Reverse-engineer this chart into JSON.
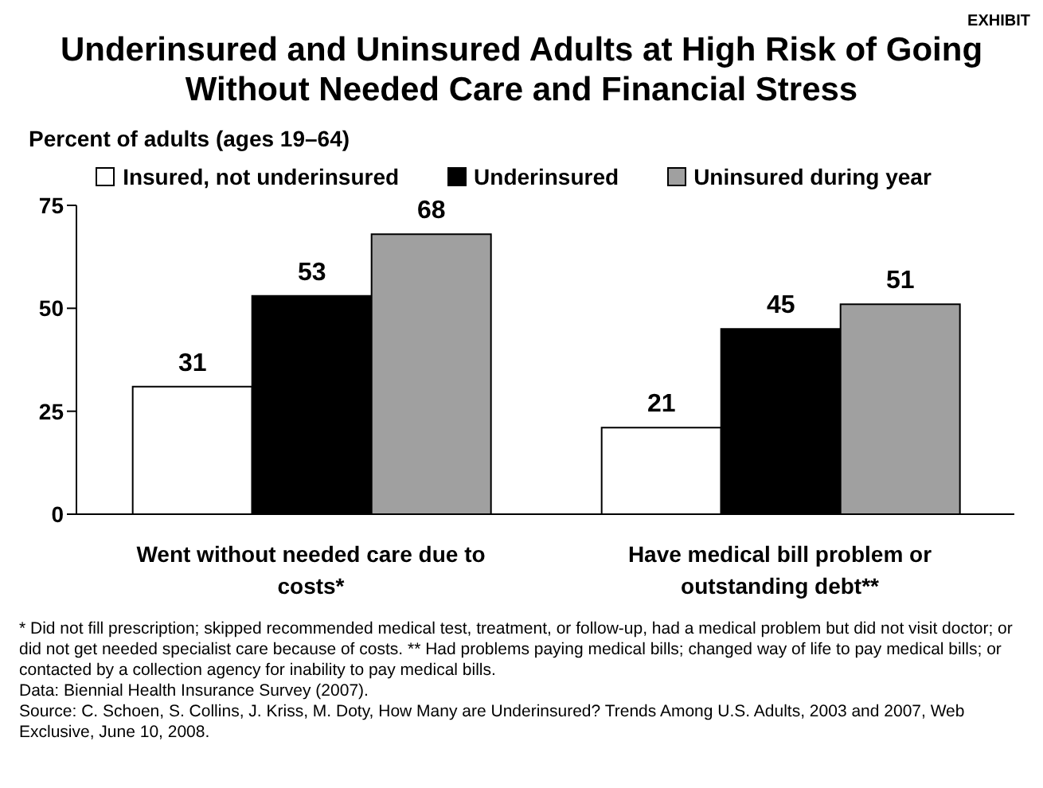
{
  "chart_data": {
    "type": "bar",
    "title": "Underinsured and Uninsured Adults at High Risk of Going Without Needed Care and Financial Stress",
    "subtitle": "Percent of adults (ages 19–64)",
    "categories": [
      "Went without needed care due to costs*",
      "Have medical bill problem or outstanding debt**"
    ],
    "series": [
      {
        "name": "Insured, not underinsured",
        "color": "#ffffff",
        "values": [
          31,
          21
        ]
      },
      {
        "name": "Underinsured",
        "color": "#000000",
        "values": [
          53,
          45
        ]
      },
      {
        "name": "Uninsured during year",
        "color": "#a0a0a0",
        "values": [
          68,
          51
        ]
      }
    ],
    "ylim": [
      0,
      75
    ],
    "yticks": [
      0,
      25,
      50,
      75
    ],
    "legend": "top",
    "data_labels": true,
    "annotations": [
      "EXHIBIT",
      "* Did not fill prescription; skipped recommended medical test, treatment, or follow-up, had a medical problem but did not visit doctor; or did not get needed specialist care because of costs. ** Had problems paying medical bills; changed way of life to pay medical bills; or contacted by a collection agency for inability to pay medical bills.",
      "Data: Biennial Health Insurance Survey (2007).",
      "Source: C. Schoen, S. Collins, J. Kriss, M. Doty, How Many are Underinsured? Trends Among U.S. Adults, 2003 and 2007, Web Exclusive, June 10, 2008."
    ]
  }
}
